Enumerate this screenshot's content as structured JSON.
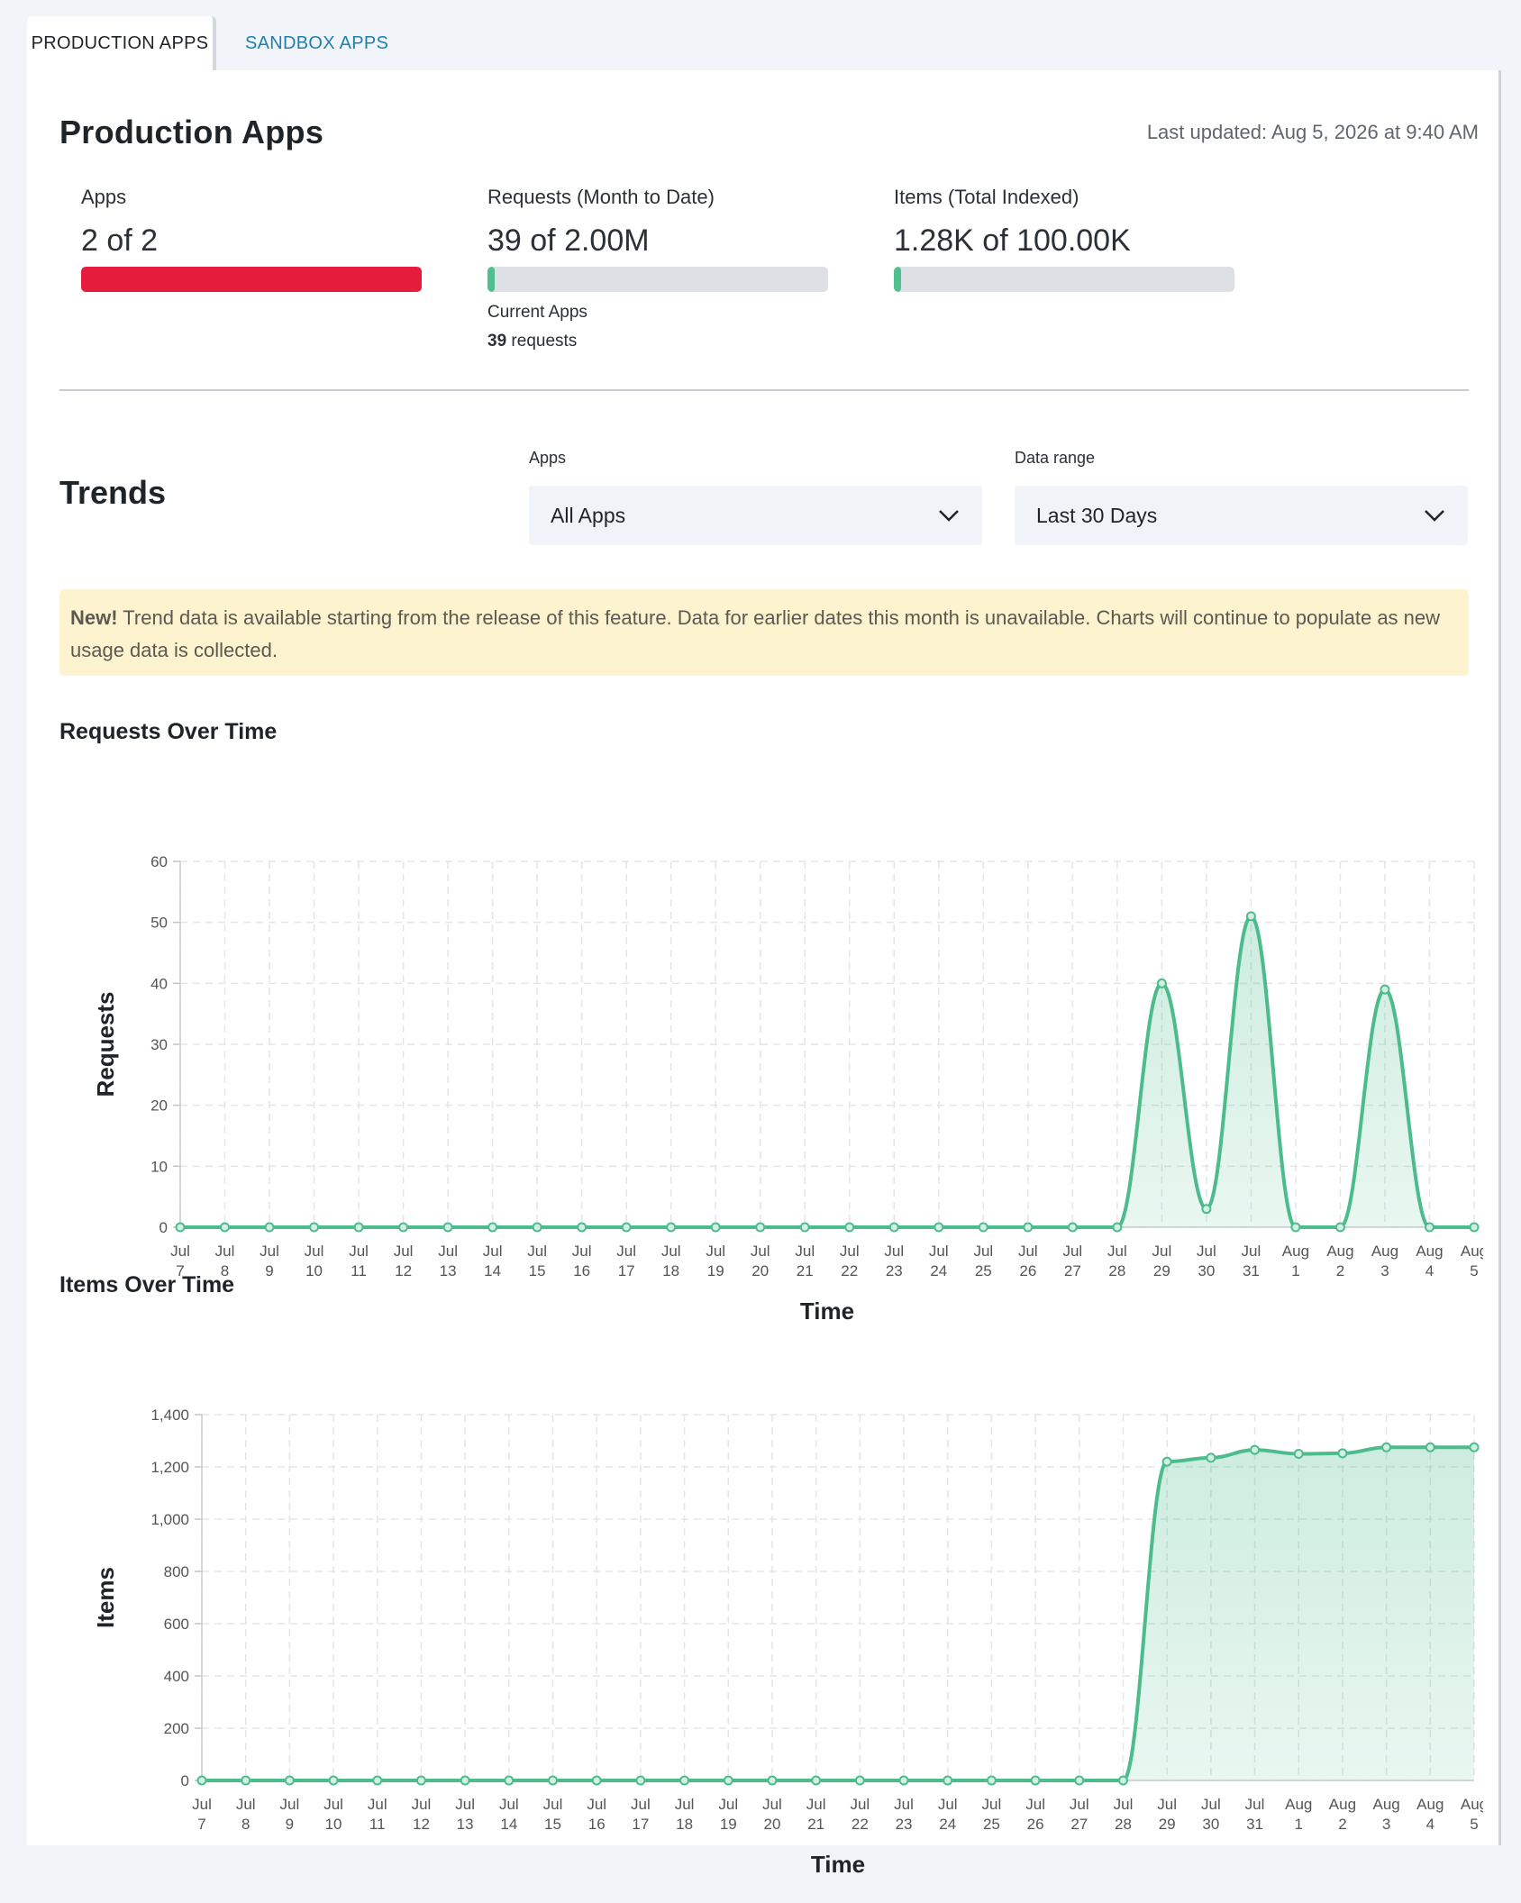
{
  "tabs": [
    {
      "label": "PRODUCTION APPS",
      "active": true
    },
    {
      "label": "SANDBOX APPS",
      "active": false
    }
  ],
  "header": {
    "title": "Production Apps",
    "last_updated": "Last updated: Aug 5, 2026 at 9:40 AM"
  },
  "stats": {
    "apps": {
      "label": "Apps",
      "value": "2 of 2",
      "fraction": 1.0,
      "color": "#e51c3c"
    },
    "requests": {
      "label": "Requests (Month to Date)",
      "value": "39 of 2.00M",
      "fraction": 2e-05,
      "color": "#4fc08d",
      "sub_label": "Current Apps",
      "sub_count": "39",
      "sub_unit": " requests"
    },
    "items": {
      "label": "Items (Total Indexed)",
      "value": "1.28K of 100.00K",
      "fraction": 0.0128,
      "color": "#4fc08d"
    }
  },
  "trends": {
    "title": "Trends",
    "apps_filter": {
      "label": "Apps",
      "value": "All Apps"
    },
    "range_filter": {
      "label": "Data range",
      "value": "Last 30 Days"
    }
  },
  "banner": {
    "bold": "New!",
    "text": " Trend data is available starting from the release of this feature. Data for earlier dates this month is unavailable. Charts will continue to populate as new usage data is collected."
  },
  "colors": {
    "accent": "#4cbc8c",
    "fill": "#d3efe2",
    "grid": "#e3e5e8"
  },
  "chart_data": [
    {
      "type": "line",
      "title": "Requests Over Time",
      "xlabel": "Time",
      "ylabel": "Requests",
      "ylim": [
        0,
        60
      ],
      "yticks": [
        0,
        10,
        20,
        30,
        40,
        50,
        60
      ],
      "grid": true,
      "categories": [
        [
          "Jul",
          "7"
        ],
        [
          "Jul",
          "8"
        ],
        [
          "Jul",
          "9"
        ],
        [
          "Jul",
          "10"
        ],
        [
          "Jul",
          "11"
        ],
        [
          "Jul",
          "12"
        ],
        [
          "Jul",
          "13"
        ],
        [
          "Jul",
          "14"
        ],
        [
          "Jul",
          "15"
        ],
        [
          "Jul",
          "16"
        ],
        [
          "Jul",
          "17"
        ],
        [
          "Jul",
          "18"
        ],
        [
          "Jul",
          "19"
        ],
        [
          "Jul",
          "20"
        ],
        [
          "Jul",
          "21"
        ],
        [
          "Jul",
          "22"
        ],
        [
          "Jul",
          "23"
        ],
        [
          "Jul",
          "24"
        ],
        [
          "Jul",
          "25"
        ],
        [
          "Jul",
          "26"
        ],
        [
          "Jul",
          "27"
        ],
        [
          "Jul",
          "28"
        ],
        [
          "Jul",
          "29"
        ],
        [
          "Jul",
          "30"
        ],
        [
          "Jul",
          "31"
        ],
        [
          "Aug",
          "1"
        ],
        [
          "Aug",
          "2"
        ],
        [
          "Aug",
          "3"
        ],
        [
          "Aug",
          "4"
        ],
        [
          "Aug",
          "5"
        ]
      ],
      "values": [
        0,
        0,
        0,
        0,
        0,
        0,
        0,
        0,
        0,
        0,
        0,
        0,
        0,
        0,
        0,
        0,
        0,
        0,
        0,
        0,
        0,
        0,
        40,
        3,
        51,
        0,
        0,
        39,
        0,
        0
      ]
    },
    {
      "type": "area",
      "title": "Items Over Time",
      "xlabel": "Time",
      "ylabel": "Items",
      "ylim": [
        0,
        1400
      ],
      "yticks": [
        0,
        200,
        400,
        600,
        800,
        1000,
        1200,
        1400
      ],
      "grid": true,
      "categories": [
        [
          "Jul",
          "7"
        ],
        [
          "Jul",
          "8"
        ],
        [
          "Jul",
          "9"
        ],
        [
          "Jul",
          "10"
        ],
        [
          "Jul",
          "11"
        ],
        [
          "Jul",
          "12"
        ],
        [
          "Jul",
          "13"
        ],
        [
          "Jul",
          "14"
        ],
        [
          "Jul",
          "15"
        ],
        [
          "Jul",
          "16"
        ],
        [
          "Jul",
          "17"
        ],
        [
          "Jul",
          "18"
        ],
        [
          "Jul",
          "19"
        ],
        [
          "Jul",
          "20"
        ],
        [
          "Jul",
          "21"
        ],
        [
          "Jul",
          "22"
        ],
        [
          "Jul",
          "23"
        ],
        [
          "Jul",
          "24"
        ],
        [
          "Jul",
          "25"
        ],
        [
          "Jul",
          "26"
        ],
        [
          "Jul",
          "27"
        ],
        [
          "Jul",
          "28"
        ],
        [
          "Jul",
          "29"
        ],
        [
          "Jul",
          "30"
        ],
        [
          "Jul",
          "31"
        ],
        [
          "Aug",
          "1"
        ],
        [
          "Aug",
          "2"
        ],
        [
          "Aug",
          "3"
        ],
        [
          "Aug",
          "4"
        ],
        [
          "Aug",
          "5"
        ]
      ],
      "values": [
        0,
        0,
        0,
        0,
        0,
        0,
        0,
        0,
        0,
        0,
        0,
        0,
        0,
        0,
        0,
        0,
        0,
        0,
        0,
        0,
        0,
        0,
        1220,
        1235,
        1265,
        1250,
        1252,
        1275,
        1275,
        1275
      ]
    }
  ]
}
